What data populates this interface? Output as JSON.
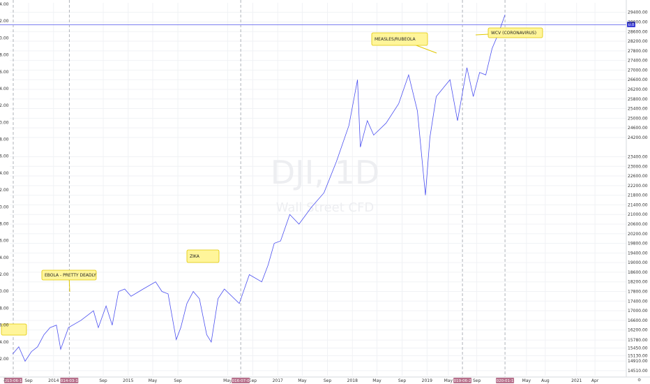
{
  "chart_data": {
    "type": "line",
    "title": "",
    "watermark": {
      "symbol": "DJI, 1D",
      "source": "Wall Street CFD"
    },
    "series": [
      {
        "color": "#4a4ff0",
        "x": [
          "2013-06-15",
          "2013-07-15",
          "2013-08-15",
          "2013-09-15",
          "2013-10-15",
          "2013-11-15",
          "2013-12-15",
          "2014-01-15",
          "2014-02-05",
          "2014-03-15",
          "2014-05-15",
          "2014-07-15",
          "2014-08-08",
          "2014-09-15",
          "2014-10-15",
          "2014-11-15",
          "2014-12-15",
          "2015-01-15",
          "2015-03-15",
          "2015-05-15",
          "2015-06-15",
          "2015-07-15",
          "2015-08-24",
          "2015-09-15",
          "2015-10-15",
          "2015-11-15",
          "2015-12-15",
          "2016-01-20",
          "2016-02-11",
          "2016-03-15",
          "2016-04-15",
          "2016-06-27",
          "2016-08-15",
          "2016-10-15",
          "2016-11-15",
          "2016-12-15",
          "2017-01-15",
          "2017-03-01",
          "2017-04-15",
          "2017-06-15",
          "2017-08-15",
          "2017-10-15",
          "2017-12-15",
          "2018-01-26",
          "2018-02-09",
          "2018-03-15",
          "2018-04-15",
          "2018-06-15",
          "2018-08-15",
          "2018-10-03",
          "2018-11-15",
          "2018-12-24",
          "2019-01-15",
          "2019-02-15",
          "2019-04-23",
          "2019-05-30",
          "2019-07-15",
          "2019-08-15",
          "2019-09-15",
          "2019-10-15",
          "2019-11-15",
          "2019-12-15",
          "2020-01-17"
        ],
        "values": [
          15200,
          15500,
          14900,
          15300,
          15500,
          16000,
          16300,
          16400,
          15400,
          16300,
          16600,
          17000,
          16300,
          17200,
          16400,
          17800,
          17900,
          17600,
          17900,
          18200,
          17800,
          17700,
          15800,
          16300,
          17300,
          17800,
          17500,
          16000,
          15700,
          17500,
          17900,
          17300,
          18500,
          18200,
          18900,
          19800,
          19900,
          21000,
          20600,
          21300,
          21900,
          23200,
          24700,
          26600,
          23800,
          24900,
          24300,
          24800,
          25600,
          26800,
          25300,
          21800,
          24200,
          25900,
          26600,
          24900,
          27100,
          25900,
          26900,
          26800,
          27900,
          28500,
          29300
        ]
      }
    ],
    "y_right": {
      "ticks": [
        14510,
        14910,
        15130,
        15450,
        15780,
        16200,
        16600,
        17000,
        17400,
        17800,
        18200,
        18600,
        19000,
        19400,
        19800,
        20200,
        20600,
        21000,
        21400,
        21800,
        22200,
        22600,
        23000,
        23400,
        24200,
        24600,
        25000,
        25400,
        25800,
        26200,
        26600,
        27000,
        27400,
        27800,
        28200,
        28600,
        29000,
        29400
      ]
    },
    "y_right_labels": [
      "14510.00",
      "14910.00",
      "15130.00",
      "15450.00",
      "15780.00",
      "16200.00",
      "16600.00",
      "17000.00",
      "17400.00",
      "17800.00",
      "18200.00",
      "18600.00",
      "19000.00",
      "19400.00",
      "19800.00",
      "20200.00",
      "20600.00",
      "21000.00",
      "21400.00",
      "21800.00",
      "22200.00",
      "22600.00",
      "23000.00",
      "23400.00",
      "24200.00",
      "24600.00",
      "25000.00",
      "25400.00",
      "25800.00",
      "26200.00",
      "26600.00",
      "27000.00",
      "27400.00",
      "27800.00",
      "28200.00",
      "28600.00",
      "29000.00",
      "29400.00"
    ],
    "y_left_labels": [
      "42.00",
      "44.00",
      "46.00",
      "48.00",
      "50.00",
      "52.00",
      "54.00",
      "56.00",
      "58.00",
      "60.00",
      "62.00",
      "64.00",
      "66.00",
      "68.00",
      "70.00",
      "72.00",
      "74.00",
      "76.00",
      "78.00",
      "80.00",
      "82.00",
      "84.00"
    ],
    "x_ticks": [
      {
        "date": "2013-09-01",
        "label": "Sep"
      },
      {
        "date": "2014-01-01",
        "label": "2014"
      },
      {
        "date": "2014-09-01",
        "label": "Sep"
      },
      {
        "date": "2015-01-01",
        "label": "2015"
      },
      {
        "date": "2015-05-01",
        "label": "May"
      },
      {
        "date": "2015-09-01",
        "label": "Sep"
      },
      {
        "date": "2016-05-01",
        "label": "May"
      },
      {
        "date": "2016-09-01",
        "label": "Sep"
      },
      {
        "date": "2017-01-01",
        "label": "2017"
      },
      {
        "date": "2017-05-01",
        "label": "May"
      },
      {
        "date": "2017-09-01",
        "label": "Sep"
      },
      {
        "date": "2018-01-01",
        "label": "2018"
      },
      {
        "date": "2018-05-01",
        "label": "May"
      },
      {
        "date": "2018-09-01",
        "label": "Sep"
      },
      {
        "date": "2019-01-01",
        "label": "2019"
      },
      {
        "date": "2019-04-15",
        "label": "May"
      },
      {
        "date": "2019-09-01",
        "label": "Sep"
      },
      {
        "date": "2020-05-01",
        "label": "May"
      },
      {
        "date": "2020-08-01",
        "label": "Aug"
      },
      {
        "date": "2021-01-01",
        "label": "2021"
      },
      {
        "date": "2021-04-01",
        "label": "Apr"
      }
    ],
    "events": [
      {
        "date": "2013-06-18",
        "label": "2013-06-18"
      },
      {
        "date": "2014-03-19",
        "label": "2014-03-19"
      },
      {
        "date": "2016-07-04",
        "label": "2016-07-04"
      },
      {
        "date": "2019-06-23",
        "label": "2019-06-23"
      },
      {
        "date": "2020-01-17",
        "label": "2020-01-17"
      }
    ],
    "annotations": [
      {
        "text": "EBOLA - PRETTY DEADLY",
        "date": "2014-04-15"
      },
      {
        "text": "ZIKA",
        "date": "2016-06-20"
      },
      {
        "text": "MEASLES/RUBEOLA",
        "date": "2019-07-20"
      },
      {
        "text": "WCV (CORONAVIRUS)",
        "date": "2020-01-17"
      }
    ],
    "current_marker": {
      "label": "0.0"
    },
    "corner_labels": {
      "bottom_left": "Z",
      "bottom_right": "⚙"
    }
  }
}
